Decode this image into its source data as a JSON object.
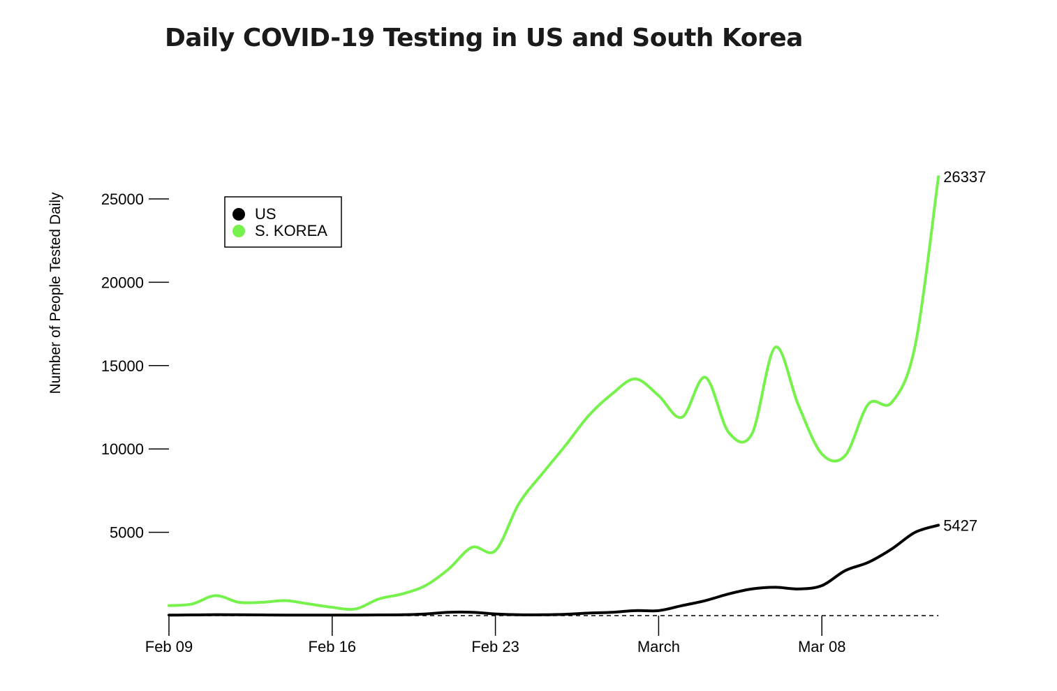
{
  "chart_data": {
    "type": "line",
    "title": "Daily COVID-19 Testing in US and South Korea",
    "xlabel": "",
    "ylabel": "Number of People Tested Daily",
    "x_ticks": [
      {
        "index": 0,
        "label": "Feb 09"
      },
      {
        "index": 7,
        "label": "Feb 16"
      },
      {
        "index": 14,
        "label": "Feb 23"
      },
      {
        "index": 21,
        "label": "March"
      },
      {
        "index": 28,
        "label": "Mar 08"
      }
    ],
    "x": [
      "Feb 09",
      "Feb 10",
      "Feb 11",
      "Feb 12",
      "Feb 13",
      "Feb 14",
      "Feb 15",
      "Feb 16",
      "Feb 17",
      "Feb 18",
      "Feb 19",
      "Feb 20",
      "Feb 21",
      "Feb 22",
      "Feb 23",
      "Feb 24",
      "Feb 25",
      "Feb 26",
      "Feb 27",
      "Feb 28",
      "Feb 29",
      "Mar 01",
      "Mar 02",
      "Mar 03",
      "Mar 04",
      "Mar 05",
      "Mar 06",
      "Mar 07",
      "Mar 08",
      "Mar 09",
      "Mar 10",
      "Mar 11",
      "Mar 12",
      "Mar 13"
    ],
    "ylim": [
      0,
      27000
    ],
    "y_ticks": [
      5000,
      10000,
      15000,
      20000,
      25000
    ],
    "grid": false,
    "legend_position": "top-left",
    "series": [
      {
        "name": "US",
        "color": "#000000",
        "values": [
          30,
          40,
          60,
          50,
          40,
          30,
          30,
          30,
          30,
          40,
          50,
          100,
          200,
          200,
          100,
          50,
          50,
          80,
          150,
          200,
          300,
          300,
          600,
          900,
          1300,
          1600,
          1700,
          1600,
          1800,
          2700,
          3200,
          4000,
          5000,
          5427
        ],
        "end_label": "5427"
      },
      {
        "name": "S. KOREA",
        "color": "#77f24d",
        "values": [
          600,
          700,
          1200,
          800,
          800,
          900,
          700,
          500,
          400,
          1000,
          1300,
          1800,
          2800,
          4100,
          3900,
          6700,
          8500,
          10200,
          12000,
          13300,
          14200,
          13200,
          11900,
          14300,
          11000,
          10900,
          16100,
          12600,
          9700,
          9600,
          12700,
          12800,
          16200,
          26337
        ],
        "end_label": "26337"
      }
    ]
  }
}
